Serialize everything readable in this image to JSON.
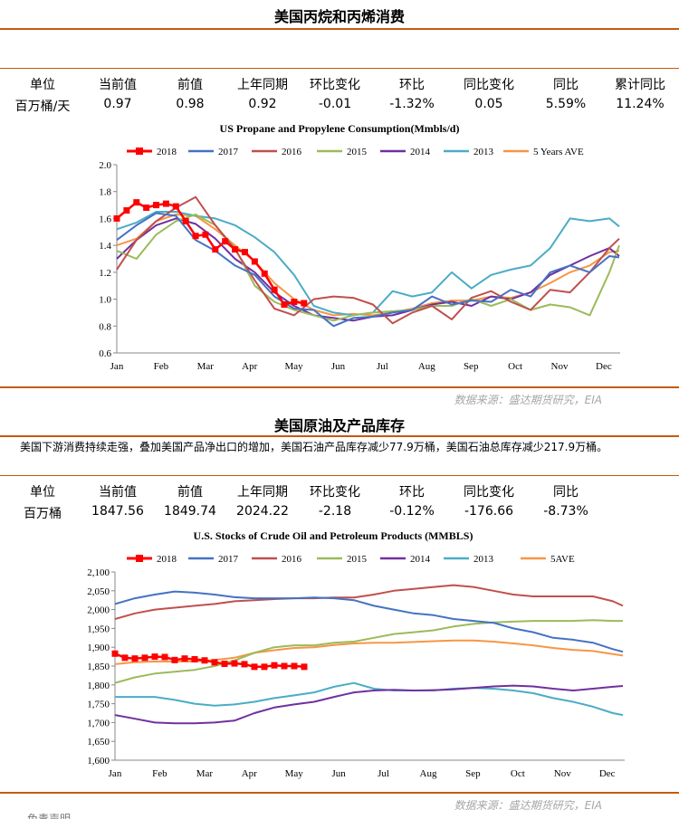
{
  "section1": {
    "title": "美国丙烷和丙烯消费",
    "table": {
      "headers": [
        "单位",
        "当前值",
        "前值",
        "上年同期",
        "环比变化",
        "环比",
        "同比变化",
        "同比",
        "累计同比"
      ],
      "values": [
        "百万桶/天",
        "0.97",
        "0.98",
        "0.92",
        "-0.01",
        "-1.32%",
        "0.05",
        "5.59%",
        "11.24%"
      ]
    },
    "source": "数据来源：盛达期货研究，EIA"
  },
  "section2": {
    "title": "美国原油及产品库存",
    "paragraph": "美国下游消费持续走强，叠加美国产品净出口的增加，美国石油产品库存减少77.9万桶，美国石油总库存减少217.9万桶。",
    "table": {
      "headers": [
        "单位",
        "当前值",
        "前值",
        "上年同期",
        "环比变化",
        "环比",
        "同比变化",
        "同比"
      ],
      "values": [
        "百万桶",
        "1847.56",
        "1849.74",
        "2024.22",
        "-2.18",
        "-0.12%",
        "-176.66",
        "-8.73%"
      ]
    },
    "source": "数据来源：盛达期货研究，EIA",
    "footer_cut": "免责声明"
  },
  "colors": {
    "accent_rule": "#c55a11",
    "series_2018": "#ff0000",
    "series_2017": "#4472c4",
    "series_2016": "#c0504d",
    "series_2015": "#9bbb59",
    "series_2014": "#7030a0",
    "series_2013": "#4bacc6",
    "series_5ave": "#f79646"
  },
  "chart_data": [
    {
      "type": "line",
      "title": "US Propane and Propylene Consumption(Mmbls/d)",
      "x_tick_labels": [
        "Jan",
        "Feb",
        "Mar",
        "Apr",
        "May",
        "Jun",
        "Jul",
        "Aug",
        "Sep",
        "Oct",
        "Nov",
        "Dec"
      ],
      "x_unit": "week of year (1-52)",
      "ylim": [
        0.6,
        2.0
      ],
      "y_ticks": [
        "0.6",
        "0.8",
        "1.0",
        "1.2",
        "1.4",
        "1.6",
        "1.8",
        "2.0"
      ],
      "grid": false,
      "legend_position": "top",
      "series": [
        {
          "name": "2018",
          "color": "#ff0000",
          "marker": "square",
          "x": [
            1,
            2,
            3,
            4,
            5,
            6,
            7,
            8,
            9,
            10,
            11,
            12,
            13,
            14,
            15,
            16,
            17,
            18,
            19,
            20
          ],
          "values": [
            1.6,
            1.66,
            1.72,
            1.68,
            1.7,
            1.71,
            1.69,
            1.58,
            1.47,
            1.48,
            1.37,
            1.43,
            1.37,
            1.35,
            1.28,
            1.19,
            1.07,
            0.96,
            0.98,
            0.97
          ]
        },
        {
          "name": "2017",
          "color": "#4472c4",
          "x": [
            1,
            3,
            5,
            7,
            9,
            11,
            13,
            15,
            17,
            19,
            21,
            23,
            25,
            27,
            29,
            31,
            33,
            35,
            37,
            39,
            41,
            43,
            45,
            47,
            49,
            51,
            52
          ],
          "values": [
            1.44,
            1.55,
            1.64,
            1.62,
            1.44,
            1.36,
            1.25,
            1.18,
            1.02,
            0.93,
            0.92,
            0.8,
            0.86,
            0.87,
            0.9,
            0.92,
            1.02,
            0.96,
            0.99,
            0.98,
            1.07,
            1.02,
            1.2,
            1.25,
            1.2,
            1.32,
            1.31
          ]
        },
        {
          "name": "2016",
          "color": "#c0504d",
          "x": [
            1,
            3,
            5,
            7,
            9,
            11,
            13,
            15,
            17,
            19,
            21,
            23,
            25,
            27,
            29,
            31,
            33,
            35,
            37,
            39,
            41,
            43,
            45,
            47,
            49,
            51,
            52
          ],
          "values": [
            1.22,
            1.44,
            1.58,
            1.68,
            1.76,
            1.55,
            1.37,
            1.14,
            0.93,
            0.88,
            1.0,
            1.02,
            1.01,
            0.96,
            0.82,
            0.9,
            0.95,
            0.85,
            1.01,
            1.06,
            0.98,
            0.92,
            1.07,
            1.05,
            1.2,
            1.38,
            1.45
          ]
        },
        {
          "name": "2015",
          "color": "#9bbb59",
          "x": [
            1,
            3,
            5,
            7,
            9,
            11,
            13,
            15,
            17,
            19,
            21,
            23,
            25,
            27,
            29,
            31,
            33,
            35,
            37,
            39,
            41,
            43,
            45,
            47,
            49,
            51,
            52
          ],
          "values": [
            1.36,
            1.3,
            1.48,
            1.58,
            1.63,
            1.55,
            1.38,
            1.1,
            0.98,
            0.92,
            0.88,
            0.84,
            0.88,
            0.9,
            0.91,
            0.92,
            0.95,
            0.95,
            1.0,
            0.95,
            1.0,
            0.92,
            0.96,
            0.94,
            0.88,
            1.2,
            1.4
          ]
        },
        {
          "name": "2014",
          "color": "#7030a0",
          "x": [
            1,
            3,
            5,
            7,
            9,
            11,
            13,
            15,
            17,
            19,
            21,
            23,
            25,
            27,
            29,
            31,
            33,
            35,
            37,
            39,
            41,
            43,
            45,
            47,
            49,
            51,
            52
          ],
          "values": [
            1.3,
            1.44,
            1.55,
            1.6,
            1.56,
            1.45,
            1.3,
            1.2,
            1.05,
            0.95,
            0.88,
            0.86,
            0.84,
            0.87,
            0.88,
            0.92,
            0.96,
            0.98,
            0.95,
            1.02,
            1.0,
            1.05,
            1.18,
            1.25,
            1.32,
            1.38,
            1.32
          ]
        },
        {
          "name": "2013",
          "color": "#4bacc6",
          "x": [
            1,
            3,
            5,
            7,
            9,
            11,
            13,
            15,
            17,
            19,
            21,
            23,
            25,
            27,
            29,
            31,
            33,
            35,
            37,
            39,
            41,
            43,
            45,
            47,
            49,
            51,
            52
          ],
          "values": [
            1.52,
            1.57,
            1.65,
            1.65,
            1.62,
            1.6,
            1.55,
            1.46,
            1.35,
            1.18,
            0.95,
            0.9,
            0.88,
            0.9,
            1.06,
            1.02,
            1.05,
            1.2,
            1.08,
            1.18,
            1.22,
            1.25,
            1.38,
            1.6,
            1.58,
            1.6,
            1.54
          ]
        },
        {
          "name": "5 Years AVE",
          "color": "#f79646",
          "x": [
            1,
            3,
            5,
            7,
            9,
            11,
            13,
            15,
            17,
            19,
            21,
            23,
            25,
            27,
            29,
            31,
            33,
            35,
            37,
            39,
            41,
            43,
            45,
            47,
            49,
            51,
            52
          ],
          "values": [
            1.4,
            1.45,
            1.58,
            1.63,
            1.62,
            1.52,
            1.4,
            1.28,
            1.12,
            1.0,
            0.92,
            0.88,
            0.89,
            0.88,
            0.9,
            0.93,
            0.97,
            0.99,
            0.99,
            1.02,
            1.01,
            1.05,
            1.12,
            1.2,
            1.25,
            1.35,
            1.36
          ]
        }
      ]
    },
    {
      "type": "line",
      "title": "U.S.  Stocks of Crude Oil and Petroleum Products  (MMBLS)",
      "x_tick_labels": [
        "Jan",
        "Feb",
        "Mar",
        "Apr",
        "May",
        "Jun",
        "Jul",
        "Aug",
        "Sep",
        "Oct",
        "Nov",
        "Dec"
      ],
      "x_unit": "week of year (1-52)",
      "ylim": [
        1600,
        2100
      ],
      "y_ticks": [
        "1,600",
        "1,650",
        "1,700",
        "1,750",
        "1,800",
        "1,850",
        "1,900",
        "1,950",
        "2,000",
        "2,050",
        "2,100"
      ],
      "grid": false,
      "legend_position": "top",
      "series": [
        {
          "name": "2018",
          "color": "#ff0000",
          "marker": "square",
          "x": [
            1,
            2,
            3,
            4,
            5,
            6,
            7,
            8,
            9,
            10,
            11,
            12,
            13,
            14,
            15,
            16,
            17,
            18,
            19,
            20
          ],
          "values": [
            1883,
            1872,
            1870,
            1872,
            1875,
            1874,
            1866,
            1870,
            1868,
            1865,
            1860,
            1856,
            1857,
            1855,
            1848,
            1848,
            1852,
            1850,
            1850,
            1848
          ]
        },
        {
          "name": "2017",
          "color": "#4472c4",
          "x": [
            1,
            3,
            5,
            7,
            9,
            11,
            13,
            15,
            17,
            19,
            21,
            23,
            25,
            27,
            29,
            31,
            33,
            35,
            37,
            39,
            41,
            43,
            45,
            47,
            49,
            51,
            52
          ],
          "values": [
            2015,
            2030,
            2040,
            2048,
            2045,
            2040,
            2033,
            2030,
            2030,
            2030,
            2032,
            2030,
            2025,
            2010,
            2000,
            1990,
            1985,
            1975,
            1970,
            1965,
            1950,
            1940,
            1925,
            1920,
            1912,
            1895,
            1888
          ]
        },
        {
          "name": "2016",
          "color": "#c0504d",
          "x": [
            1,
            3,
            5,
            7,
            9,
            11,
            13,
            15,
            17,
            19,
            21,
            23,
            25,
            27,
            29,
            31,
            33,
            35,
            37,
            39,
            41,
            43,
            45,
            47,
            49,
            51,
            52
          ],
          "values": [
            1975,
            1990,
            2000,
            2005,
            2010,
            2015,
            2022,
            2025,
            2028,
            2030,
            2030,
            2032,
            2032,
            2040,
            2050,
            2055,
            2060,
            2065,
            2060,
            2050,
            2040,
            2035,
            2035,
            2035,
            2035,
            2022,
            2010
          ]
        },
        {
          "name": "2015",
          "color": "#9bbb59",
          "x": [
            1,
            3,
            5,
            7,
            9,
            11,
            13,
            15,
            17,
            19,
            21,
            23,
            25,
            27,
            29,
            31,
            33,
            35,
            37,
            39,
            41,
            43,
            45,
            47,
            49,
            51,
            52
          ],
          "values": [
            1805,
            1820,
            1830,
            1835,
            1840,
            1850,
            1865,
            1885,
            1900,
            1905,
            1905,
            1912,
            1915,
            1925,
            1935,
            1940,
            1945,
            1955,
            1962,
            1966,
            1968,
            1970,
            1970,
            1970,
            1972,
            1970,
            1970
          ]
        },
        {
          "name": "2014",
          "color": "#7030a0",
          "x": [
            1,
            3,
            5,
            7,
            9,
            11,
            13,
            15,
            17,
            19,
            21,
            23,
            25,
            27,
            29,
            31,
            33,
            35,
            37,
            39,
            41,
            43,
            45,
            47,
            49,
            51,
            52
          ],
          "values": [
            1720,
            1710,
            1700,
            1698,
            1698,
            1700,
            1705,
            1725,
            1740,
            1748,
            1755,
            1768,
            1780,
            1785,
            1787,
            1785,
            1786,
            1788,
            1792,
            1796,
            1798,
            1796,
            1790,
            1785,
            1790,
            1795,
            1797
          ]
        },
        {
          "name": "2013",
          "color": "#4bacc6",
          "x": [
            1,
            3,
            5,
            7,
            9,
            11,
            13,
            15,
            17,
            19,
            21,
            23,
            25,
            27,
            29,
            31,
            33,
            35,
            37,
            39,
            41,
            43,
            45,
            47,
            49,
            51,
            52
          ],
          "values": [
            1768,
            1768,
            1768,
            1760,
            1750,
            1745,
            1748,
            1755,
            1765,
            1772,
            1780,
            1795,
            1805,
            1790,
            1785,
            1785,
            1785,
            1790,
            1792,
            1790,
            1785,
            1778,
            1765,
            1755,
            1742,
            1725,
            1720
          ]
        },
        {
          "name": "5AVE",
          "color": "#f79646",
          "x": [
            1,
            3,
            5,
            7,
            9,
            11,
            13,
            15,
            17,
            19,
            21,
            23,
            25,
            27,
            29,
            31,
            33,
            35,
            37,
            39,
            41,
            43,
            45,
            47,
            49,
            51,
            52
          ],
          "values": [
            1855,
            1860,
            1862,
            1862,
            1862,
            1866,
            1872,
            1885,
            1892,
            1898,
            1900,
            1906,
            1910,
            1912,
            1912,
            1914,
            1916,
            1918,
            1918,
            1915,
            1910,
            1905,
            1898,
            1893,
            1890,
            1882,
            1878
          ]
        }
      ]
    }
  ]
}
